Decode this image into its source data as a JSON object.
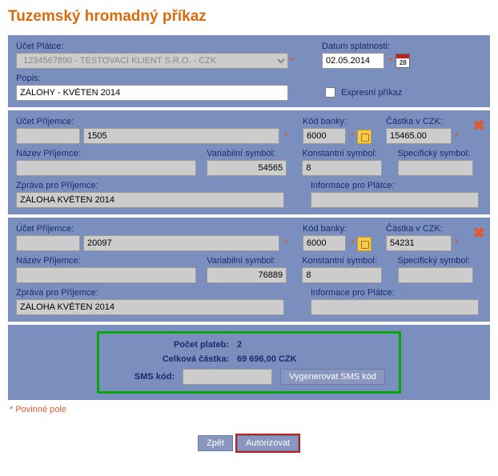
{
  "title": "Tuzemský hromadný příkaz",
  "header": {
    "account_label": "Účet Plátce:",
    "account_value": "1234567890 - TESTOVACÍ KLIENT S.R.O. - CZK",
    "date_label": "Datum splatnosti:",
    "date_value": "02.05.2014",
    "cal_day": "28",
    "desc_label": "Popis:",
    "desc_value": "ZÁLOHY - KVĚTEN 2014",
    "express_label": "Expresní příkaz"
  },
  "fields": {
    "recipient_account": "Účet Příjemce:",
    "bank_code": "Kód banky:",
    "amount": "Částka v CZK:",
    "recipient_name": "Název Příjemce:",
    "var_symbol": "Variabilní symbol:",
    "const_symbol": "Konstantní symbol:",
    "spec_symbol": "Specifický symbol:",
    "msg_recipient": "Zpráva pro Příjemce:",
    "info_payer": "Informace pro Plátce:"
  },
  "payments": [
    {
      "account_prefix": "",
      "account": "1505",
      "bank_code": "6000",
      "amount": "15465.00",
      "recipient_name": "",
      "var_symbol": "54565",
      "const_symbol": "8",
      "spec_symbol": "",
      "message": "ZÁLOHA KVĚTEN 2014",
      "info_payer": ""
    },
    {
      "account_prefix": "",
      "account": "20097",
      "bank_code": "6000",
      "amount": "54231",
      "recipient_name": "",
      "var_symbol": "76889",
      "const_symbol": "8",
      "spec_symbol": "",
      "message": "ZÁLOHA KVĚTEN 2014",
      "info_payer": ""
    }
  ],
  "summary": {
    "count_label": "Počet plateb:",
    "count_value": "2",
    "total_label": "Celková částka:",
    "total_value": "69 696,00 CZK",
    "sms_label": "SMS kód:",
    "sms_value": "",
    "generate_btn": "Vygenerovat SMS kód"
  },
  "footnote": "* Povinné pole",
  "buttons": {
    "back": "Zpět",
    "authorize": "Autorizovat"
  },
  "colors": {
    "title": "#d96b0c",
    "panel_bg": "#7b8fbf",
    "label": "#1a2a6e",
    "disabled_bg": "#cccccc",
    "asterisk": "#e05a2b",
    "summary_border": "#0aa50a",
    "auth_border": "#c02020",
    "btn_bg": "#8896c0"
  }
}
